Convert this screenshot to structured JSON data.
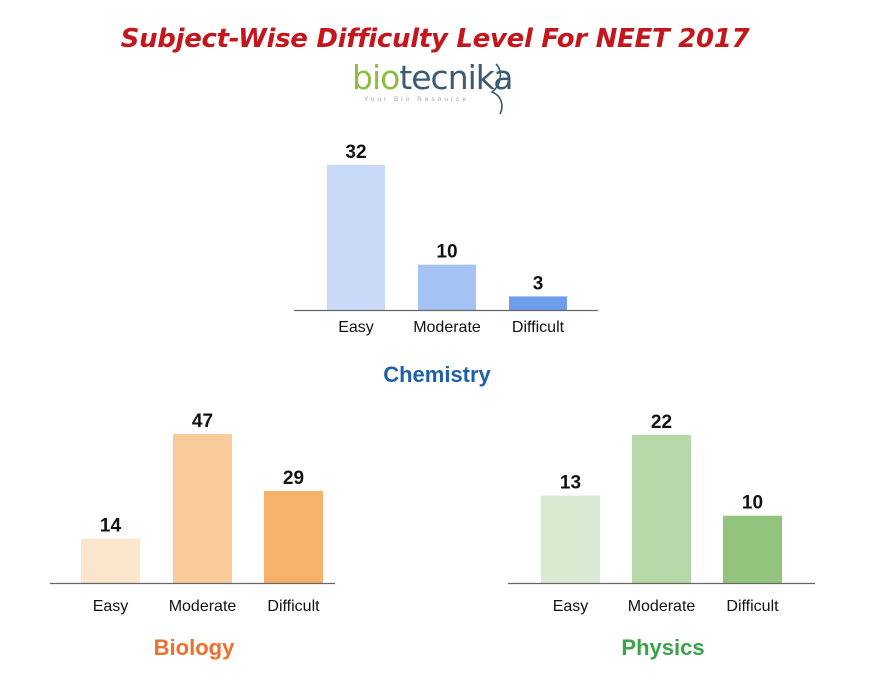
{
  "title": "Subject-Wise Difficulty Level For NEET 2017",
  "logo": {
    "brand_part1": "bio",
    "brand_part2": "tecnika",
    "tagline": "Your Bio Resource",
    "colors": {
      "bio": "#8cbf3f",
      "tecnika": "#3a5b74"
    }
  },
  "chart_data": [
    {
      "type": "bar",
      "title": "Chemistry",
      "title_color": "#1f5fa8",
      "categories": [
        "Easy",
        "Moderate",
        "Difficult"
      ],
      "values": [
        32,
        10,
        3
      ],
      "bar_colors": [
        "#c9daf8",
        "#a4c2f4",
        "#6d9eeb"
      ],
      "xlabel": "",
      "ylabel": "",
      "ylim": [
        0,
        32
      ],
      "grid": false,
      "legend": "none",
      "data_labels": true
    },
    {
      "type": "bar",
      "title": "Biology",
      "title_color": "#f26f2b",
      "categories": [
        "Easy",
        "Moderate",
        "Difficult"
      ],
      "values": [
        14,
        47,
        29
      ],
      "bar_colors": [
        "#fce5cd",
        "#f9cb9c",
        "#f6b26b"
      ],
      "xlabel": "",
      "ylabel": "",
      "ylim": [
        0,
        47
      ],
      "grid": false,
      "legend": "none",
      "data_labels": true
    },
    {
      "type": "bar",
      "title": "Physics",
      "title_color": "#3aa24a",
      "categories": [
        "Easy",
        "Moderate",
        "Difficult"
      ],
      "values": [
        13,
        22,
        10
      ],
      "bar_colors": [
        "#d9ead3",
        "#b6d7a8",
        "#93c47d"
      ],
      "xlabel": "",
      "ylabel": "",
      "ylim": [
        0,
        22
      ],
      "grid": false,
      "legend": "none",
      "data_labels": true
    }
  ]
}
